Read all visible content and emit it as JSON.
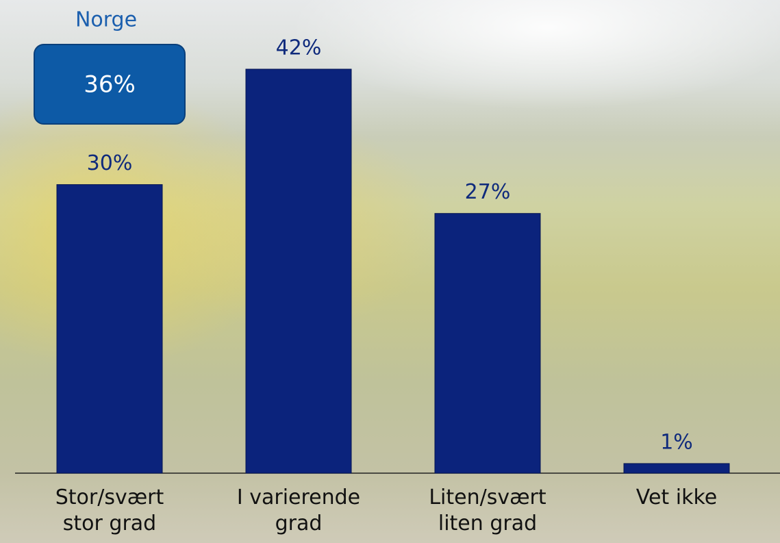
{
  "chart_data": {
    "type": "bar",
    "categories": [
      "Stor/svært stor grad",
      "I varierende grad",
      "Liten/svært liten grad",
      "Vet ikke"
    ],
    "values": [
      30,
      42,
      27,
      1
    ],
    "value_labels": [
      "30%",
      "42%",
      "27%",
      "1%"
    ],
    "color": "#0b237c",
    "annotation": {
      "title": "Norge",
      "text": "36%"
    }
  }
}
